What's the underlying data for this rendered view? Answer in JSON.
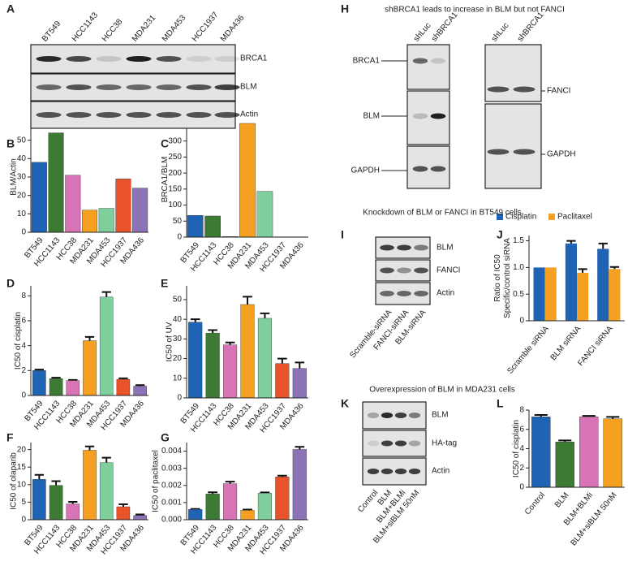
{
  "chart_data": [
    {
      "panel": "B",
      "type": "bar",
      "ylabel": "BLM/Actin",
      "categories": [
        "BT549",
        "HCC1143",
        "HCC38",
        "MDA231",
        "MDA453",
        "HCC1937",
        "MDA436"
      ],
      "values": [
        38,
        54,
        31,
        12,
        13,
        29,
        24
      ],
      "colors": [
        "#1f64b4",
        "#3d7a34",
        "#d873b5",
        "#f5a020",
        "#7fcf9c",
        "#e8532a",
        "#8c73b8"
      ],
      "ylim": [
        0,
        60
      ],
      "yticks": [
        0,
        10,
        20,
        30,
        40,
        50
      ]
    },
    {
      "panel": "C",
      "type": "bar",
      "ylabel": "BRCA1/BLM",
      "categories": [
        "BT549",
        "HCC1143",
        "HCC38",
        "MDA231",
        "MDA453",
        "HCC1937",
        "MDA436"
      ],
      "values": [
        68,
        66,
        2,
        355,
        143,
        1,
        1
      ],
      "colors": [
        "#1f64b4",
        "#3d7a34",
        "#d873b5",
        "#f5a020",
        "#7fcf9c",
        "#e8532a",
        "#8c73b8"
      ],
      "ylim": [
        0,
        360
      ],
      "yticks": [
        0,
        50,
        100,
        150,
        200,
        250,
        300,
        350
      ]
    },
    {
      "panel": "D",
      "type": "bar",
      "ylabel": "IC50 of cisplatin",
      "categories": [
        "BT549",
        "HCC1143",
        "HCC38",
        "MDA231",
        "MDA453",
        "HCC1937",
        "MDA436"
      ],
      "values": [
        2.0,
        1.35,
        1.2,
        4.4,
        7.9,
        1.3,
        0.75
      ],
      "errors": [
        0.08,
        0.08,
        0.05,
        0.3,
        0.4,
        0.08,
        0.08
      ],
      "colors": [
        "#1f64b4",
        "#3d7a34",
        "#d873b5",
        "#f5a020",
        "#7fcf9c",
        "#e8532a",
        "#8c73b8"
      ],
      "ylim": [
        0,
        8.8
      ],
      "yticks": [
        0,
        2,
        4,
        6,
        8
      ]
    },
    {
      "panel": "E",
      "type": "bar",
      "ylabel": "IC50 of UV",
      "categories": [
        "BT549",
        "HCC1143",
        "HCC38",
        "MDA231",
        "MDA453",
        "HCC1937",
        "MDA436"
      ],
      "values": [
        38.5,
        33,
        27,
        47.5,
        40.5,
        17.5,
        15
      ],
      "errors": [
        1.5,
        1.5,
        1.2,
        4,
        2.5,
        2.5,
        3
      ],
      "colors": [
        "#1f64b4",
        "#3d7a34",
        "#d873b5",
        "#f5a020",
        "#7fcf9c",
        "#e8532a",
        "#8c73b8"
      ],
      "ylim": [
        0,
        57
      ],
      "yticks": [
        0,
        10,
        20,
        30,
        40,
        50
      ]
    },
    {
      "panel": "F",
      "type": "bar",
      "ylabel": "IC50 of olaparib",
      "categories": [
        "BT549",
        "HCC1143",
        "HCC38",
        "MDA231",
        "MDA453",
        "HCC1937",
        "MDA436"
      ],
      "values": [
        11.5,
        9.8,
        4.5,
        19.8,
        16.3,
        3.7,
        1.2
      ],
      "errors": [
        1.3,
        1.2,
        0.6,
        1.1,
        1.4,
        0.7,
        0.3
      ],
      "colors": [
        "#1f64b4",
        "#3d7a34",
        "#d873b5",
        "#f5a020",
        "#7fcf9c",
        "#e8532a",
        "#8c73b8"
      ],
      "ylim": [
        0,
        22
      ],
      "yticks": [
        0,
        5,
        10,
        15,
        20
      ]
    },
    {
      "panel": "G",
      "type": "bar",
      "ylabel": "IC50 of paclitaxel",
      "categories": [
        "BT549",
        "HCC1143",
        "HCC38",
        "MDA231",
        "MDA453",
        "HCC1937",
        "MDA436"
      ],
      "values": [
        0.0006,
        0.0015,
        0.0021,
        0.00055,
        0.00155,
        0.0025,
        0.0041
      ],
      "errors": [
        3e-05,
        0.0001,
        0.00012,
        4e-05,
        4e-05,
        7e-05,
        0.00015
      ],
      "colors": [
        "#1f64b4",
        "#3d7a34",
        "#d873b5",
        "#f5a020",
        "#7fcf9c",
        "#e8532a",
        "#8c73b8"
      ],
      "ylim": [
        0,
        0.0045
      ],
      "yticks": [
        {
          "value": 0,
          "label": "0.000"
        },
        {
          "value": 0.001,
          "label": "0.001"
        },
        {
          "value": 0.002,
          "label": "0.002"
        },
        {
          "value": 0.003,
          "label": "0.003"
        },
        {
          "value": 0.004,
          "label": "0.004"
        }
      ]
    },
    {
      "panel": "J",
      "type": "grouped_bar",
      "ylabel": [
        "Ratio of IC50",
        "Specific/control siRNA"
      ],
      "categories": [
        "Scramble siRNA",
        "BLM siRNA",
        "FANCI siRNA"
      ],
      "series": [
        {
          "name": "Cisplatin",
          "color": "#1f64b4",
          "values": [
            1.0,
            1.45,
            1.35
          ],
          "errors": [
            0,
            0.05,
            0.1
          ]
        },
        {
          "name": "Paclitaxel",
          "color": "#f5a020",
          "values": [
            1.0,
            0.9,
            0.97
          ],
          "errors": [
            0,
            0.07,
            0.04
          ]
        }
      ],
      "legend": "top",
      "ylim": [
        0,
        1.6
      ],
      "yticks": [
        0,
        0.5,
        {
          "value": 1.0,
          "label": "1.0"
        },
        1.5
      ]
    },
    {
      "panel": "L",
      "type": "bar",
      "ylabel": "IC50 of cisplatin",
      "categories": [
        "Control",
        "BLM",
        "BLM+BLMi",
        "BLM+siBLM 50nM"
      ],
      "values": [
        7.3,
        4.7,
        7.3,
        7.1
      ],
      "errors": [
        0.2,
        0.15,
        0.1,
        0.2
      ],
      "colors": [
        "#1f64b4",
        "#3d7a34",
        "#d873b5",
        "#f5a020"
      ],
      "ylim": [
        0,
        8
      ],
      "yticks": [
        0,
        2,
        4,
        6,
        8
      ]
    }
  ],
  "blots": [
    {
      "panel": "A",
      "lanes": [
        "BT549",
        "HCC1143",
        "HCC38",
        "MDA231",
        "MDA453",
        "HCC1937",
        "MDA436"
      ],
      "rows": [
        "BRCA1",
        "BLM",
        "Actin"
      ]
    },
    {
      "panel": "H",
      "title": "shBRCA1 leads to increase in BLM but not FANCI",
      "lanes": [
        "shLuc",
        "shBRCA1",
        "shLuc",
        "shBRCA1"
      ],
      "rows": [
        "BRCA1",
        "BLM",
        "GAPDH",
        "FANCI",
        "GAPDH"
      ]
    },
    {
      "panel": "I",
      "title": "Knockdown of BLM or FANCI in BT549 cells",
      "lanes": [
        "Scramble-siRNA",
        "FANCI-siRNA",
        "BLM-siRNA"
      ],
      "rows": [
        "BLM",
        "FANCI",
        "Actin"
      ]
    },
    {
      "panel": "K",
      "title": "Overexpression of BLM in MDA231 cells",
      "lanes": [
        "Control",
        "BLM",
        "BLM+BLMi",
        "BLM+siBLM 50nM"
      ],
      "rows": [
        "BLM",
        "HA-tag",
        "Actin"
      ]
    }
  ]
}
